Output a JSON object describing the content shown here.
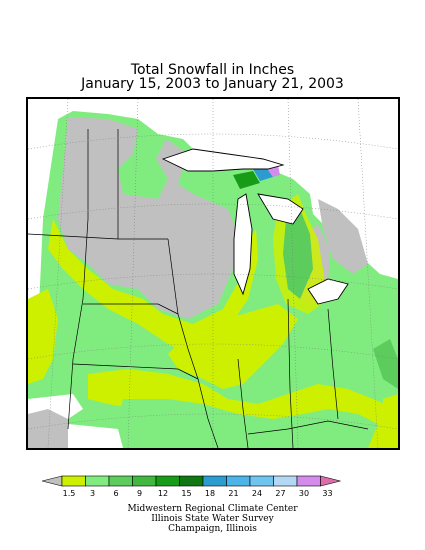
{
  "map": {
    "title_line1": "Total Snowfall in Inches",
    "title_line2": "January 15, 2003 to January 21, 2003"
  },
  "legend": {
    "bins": [
      {
        "color": "#c0c0c0",
        "label": "1.5"
      },
      {
        "color": "#ccf000",
        "label": "3"
      },
      {
        "color": "#80ec80",
        "label": "6"
      },
      {
        "color": "#5ccc5c",
        "label": "9"
      },
      {
        "color": "#40b840",
        "label": "12"
      },
      {
        "color": "#189c18",
        "label": "15"
      },
      {
        "color": "#107810",
        "label": "18"
      },
      {
        "color": "#2c9cd0",
        "label": "21"
      },
      {
        "color": "#4cb4e8",
        "label": "24"
      },
      {
        "color": "#70c4f0",
        "label": "27"
      },
      {
        "color": "#b4d8f4",
        "label": "30"
      },
      {
        "color": "#d48cec",
        "label": "33"
      },
      {
        "color": "#dc6cac",
        "label": ""
      }
    ]
  },
  "credits": {
    "line1": "Midwestern Regional Climate Center",
    "line2": "Illinois State Water Survey",
    "line3": "Champaign, Illinois"
  }
}
